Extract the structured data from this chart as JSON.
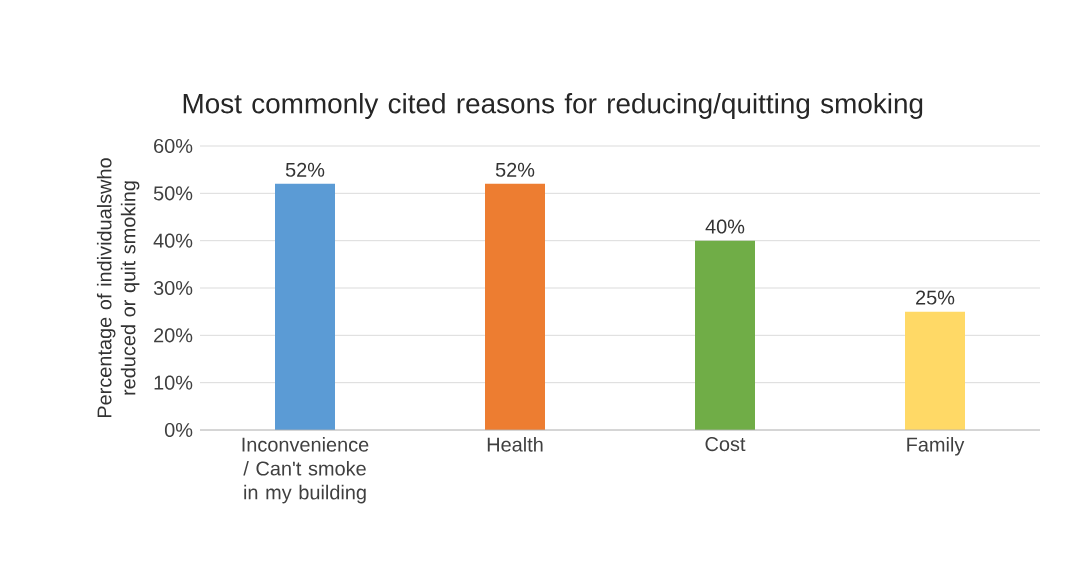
{
  "chart_data": {
    "type": "bar",
    "title": "Most commonly cited reasons for reducing/quitting smoking",
    "ylabel": "Percentage of individualswho reduced or quit smoking",
    "categories": [
      "Inconvenience / Can't smoke in my building",
      "Health",
      "Cost",
      "Family"
    ],
    "values": [
      52,
      52,
      40,
      25
    ],
    "colors": [
      "#5b9bd5",
      "#ed7d31",
      "#70ad47",
      "#ffd966"
    ],
    "value_labels": [
      "52%",
      "52%",
      "40%",
      "25%"
    ],
    "ylim": [
      0,
      60
    ],
    "yticks": [
      {
        "value": 0,
        "label": "0%"
      },
      {
        "value": 10,
        "label": "10%"
      },
      {
        "value": 20,
        "label": "20%"
      },
      {
        "value": 30,
        "label": "30%"
      },
      {
        "value": 40,
        "label": "40%"
      },
      {
        "value": 50,
        "label": "50%"
      },
      {
        "value": 60,
        "label": "60%"
      }
    ],
    "grid": "y"
  }
}
